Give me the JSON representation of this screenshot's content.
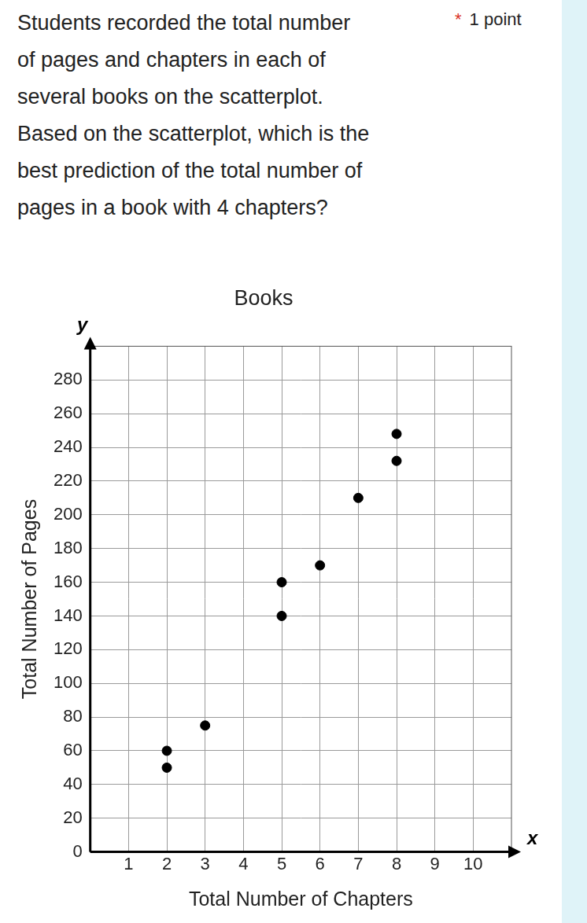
{
  "question": {
    "lines": [
      "Students recorded the total number",
      "of pages and chapters in each of",
      "several books on the scatterplot.",
      "Based on the scatterplot, which is the",
      "best prediction of the total number of",
      "pages in a book with 4 chapters?"
    ],
    "required": "*",
    "points": "1 point"
  },
  "chart_data": {
    "type": "scatter",
    "title": "Books",
    "x_label": "Total Number of Chapters",
    "y_label": "Total Number of Pages",
    "axis_names": {
      "x": "x",
      "y": "y"
    },
    "x": [
      2,
      2,
      3,
      5,
      5,
      6,
      7,
      8,
      8
    ],
    "values": [
      50,
      60,
      75,
      140,
      160,
      170,
      210,
      232,
      248
    ],
    "color": "#000000",
    "marker": "circle",
    "xlim": [
      0,
      11
    ],
    "xticks": [
      1,
      2,
      3,
      4,
      5,
      6,
      7,
      8,
      9,
      10
    ],
    "ylim": [
      0,
      300
    ],
    "yticks": [
      0,
      20,
      40,
      60,
      80,
      100,
      120,
      140,
      160,
      180,
      200,
      220,
      240,
      260,
      280
    ],
    "grid": true
  }
}
